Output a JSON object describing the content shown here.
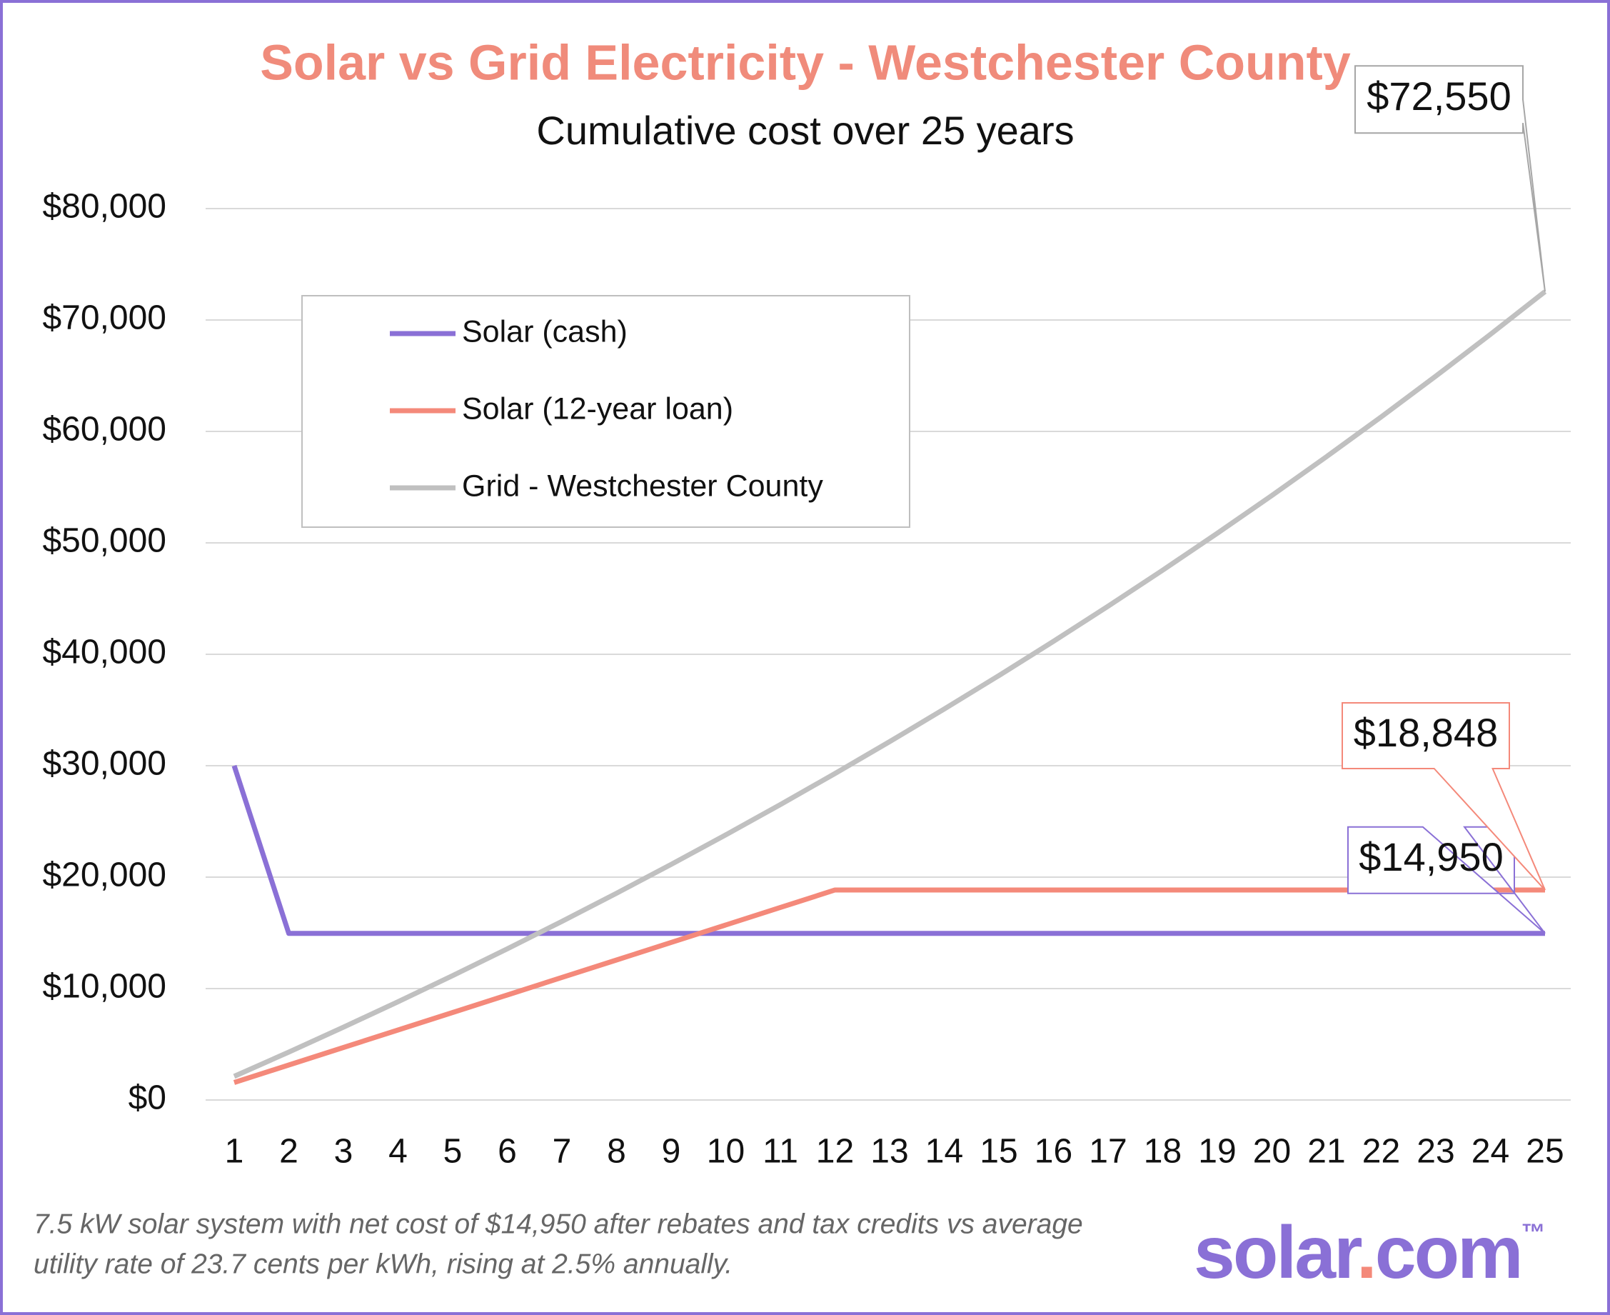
{
  "chart_data": {
    "type": "line",
    "title": "Solar vs Grid Electricity - Westchester County",
    "subtitle": "Cumulative cost over 25 years",
    "categories": [
      "1",
      "2",
      "3",
      "4",
      "5",
      "6",
      "7",
      "8",
      "9",
      "10",
      "11",
      "12",
      "13",
      "14",
      "15",
      "16",
      "17",
      "18",
      "19",
      "20",
      "21",
      "22",
      "23",
      "24",
      "25"
    ],
    "series": [
      {
        "name": "Solar (cash)",
        "color": "#8a70d6",
        "values": [
          30000,
          14950,
          14950,
          14950,
          14950,
          14950,
          14950,
          14950,
          14950,
          14950,
          14950,
          14950,
          14950,
          14950,
          14950,
          14950,
          14950,
          14950,
          14950,
          14950,
          14950,
          14950,
          14950,
          14950,
          14950
        ],
        "value_labels": [
          null,
          null,
          null,
          null,
          null,
          null,
          null,
          null,
          null,
          null,
          null,
          null,
          null,
          null,
          null,
          null,
          null,
          null,
          null,
          null,
          null,
          null,
          null,
          null,
          "$14,950"
        ]
      },
      {
        "name": "Solar (12-year loan)",
        "color": "#f4897a",
        "values": [
          1571,
          3141,
          4712,
          6283,
          7853,
          9424,
          10995,
          12565,
          14136,
          15707,
          17277,
          18848,
          18848,
          18848,
          18848,
          18848,
          18848,
          18848,
          18848,
          18848,
          18848,
          18848,
          18848,
          18848,
          18848
        ],
        "value_labels": [
          null,
          null,
          null,
          null,
          null,
          null,
          null,
          null,
          null,
          null,
          null,
          null,
          null,
          null,
          null,
          null,
          null,
          null,
          null,
          null,
          null,
          null,
          null,
          null,
          "$18,848"
        ]
      },
      {
        "name": "Grid - Westchester County",
        "color": "#c0c0c0",
        "values": [
          2124,
          4301,
          6532,
          8819,
          11163,
          13566,
          16029,
          18554,
          21142,
          23795,
          26514,
          29301,
          32158,
          35086,
          38087,
          41163,
          44316,
          47548,
          50861,
          54257,
          57737,
          61304,
          64961,
          68709,
          72550
        ],
        "value_labels": [
          null,
          null,
          null,
          null,
          null,
          null,
          null,
          null,
          null,
          null,
          null,
          null,
          null,
          null,
          null,
          null,
          null,
          null,
          null,
          null,
          null,
          null,
          null,
          null,
          "$72,550"
        ]
      }
    ],
    "ylim": [
      0,
      80000
    ],
    "yticks": [
      {
        "value": 0,
        "label": "$0"
      },
      {
        "value": 10000,
        "label": "$10,000"
      },
      {
        "value": 20000,
        "label": "$20,000"
      },
      {
        "value": 30000,
        "label": "$30,000"
      },
      {
        "value": 40000,
        "label": "$40,000"
      },
      {
        "value": 50000,
        "label": "$50,000"
      },
      {
        "value": 60000,
        "label": "$60,000"
      },
      {
        "value": 70000,
        "label": "$70,000"
      },
      {
        "value": 80000,
        "label": "$80,000"
      }
    ],
    "grid": true,
    "legend": "upper left",
    "footnote": [
      "7.5 kW solar system with net cost of $14,950 after rebates and tax credits vs average",
      "utility rate of 23.7 cents per kWh, rising at 2.5% annually."
    ],
    "logo": [
      "solar",
      ".",
      "com"
    ],
    "trademark": "™"
  }
}
